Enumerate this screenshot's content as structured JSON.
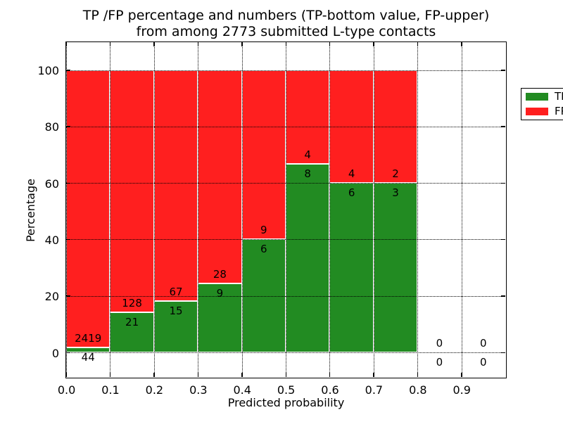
{
  "chart_data": {
    "type": "bar",
    "stacked": true,
    "title_line1": "TP /FP percentage and numbers (TP-bottom value, FP-upper)",
    "title_line2": "from among 2773 submitted L-type contacts",
    "xlabel": "Predicted probability",
    "ylabel": "Percentage",
    "total_contacts": 2773,
    "xlim": [
      0.0,
      1.0
    ],
    "ylim": [
      -10,
      110
    ],
    "xtick_labels": [
      "0.0",
      "0.1",
      "0.2",
      "0.3",
      "0.4",
      "0.5",
      "0.6",
      "0.7",
      "0.8",
      "0.9"
    ],
    "ytick_values": [
      0,
      20,
      40,
      60,
      80,
      100
    ],
    "grid": true,
    "legend_position": "upper right",
    "series": [
      {
        "name": "TP",
        "color": "#228b22"
      },
      {
        "name": "FP",
        "color": "#ff1f1f"
      }
    ],
    "categories": [
      "0.0-0.1",
      "0.1-0.2",
      "0.2-0.3",
      "0.3-0.4",
      "0.4-0.5",
      "0.5-0.6",
      "0.6-0.7",
      "0.7-0.8",
      "0.8-0.9",
      "0.9-1.0"
    ],
    "bins": [
      {
        "range": "0.0-0.1",
        "tp": 44,
        "fp": 2419,
        "bar": true
      },
      {
        "range": "0.1-0.2",
        "tp": 21,
        "fp": 128,
        "bar": true
      },
      {
        "range": "0.2-0.3",
        "tp": 15,
        "fp": 67,
        "bar": true
      },
      {
        "range": "0.3-0.4",
        "tp": 9,
        "fp": 28,
        "bar": true
      },
      {
        "range": "0.4-0.5",
        "tp": 6,
        "fp": 9,
        "bar": true
      },
      {
        "range": "0.5-0.6",
        "tp": 8,
        "fp": 4,
        "bar": true
      },
      {
        "range": "0.6-0.7",
        "tp": 6,
        "fp": 4,
        "bar": true
      },
      {
        "range": "0.7-0.8",
        "tp": 3,
        "fp": 2,
        "bar": true
      },
      {
        "range": "0.8-0.9",
        "tp": 0,
        "fp": 0,
        "bar": false
      },
      {
        "range": "0.9-1.0",
        "tp": 0,
        "fp": 0,
        "bar": false
      }
    ],
    "colors": {
      "tp": "#228b22",
      "fp": "#ff1f1f",
      "grid": "#000000",
      "bar_edge": "#ffffff",
      "axes_edge": "#000000",
      "background": "#ffffff"
    }
  }
}
